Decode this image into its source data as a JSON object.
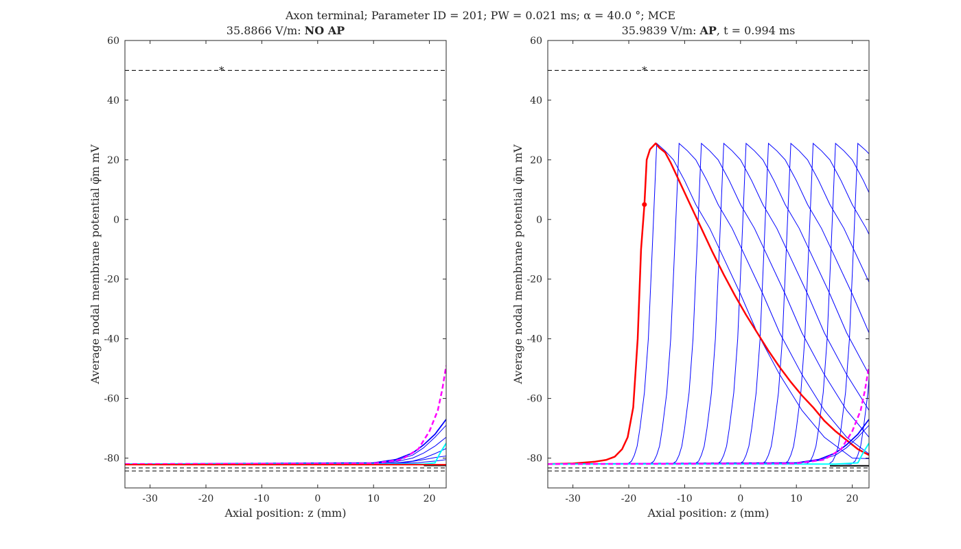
{
  "figure": {
    "suptitle": "Axon terminal; Parameter ID = 201; PW = 0.021 ms; α = 40.0 °; MCE"
  },
  "chart_data": [
    {
      "type": "line",
      "title_prefix": "35.8866 V/m: ",
      "title_bold": "NO AP",
      "title_suffix": "",
      "xlabel": "Axial position: z (mm)",
      "ylabel": "Average nodal membrane potential φ̄m mV",
      "xlim": [
        -34.5,
        23
      ],
      "ylim": [
        -90,
        60
      ],
      "xticks": [
        -30,
        -20,
        -10,
        0,
        10,
        20
      ],
      "yticks": [
        -80,
        -60,
        -40,
        -20,
        0,
        20,
        40,
        60
      ],
      "threshold_line": {
        "y": 50,
        "color": "#000000",
        "style": "dashed"
      },
      "threshold_marker": {
        "x": -17.2,
        "y": 50,
        "symbol": "*"
      },
      "reference_lines": [
        {
          "y": -83.3,
          "color": "#000000",
          "style": "dashed"
        },
        {
          "y": -84.3,
          "color": "#000000",
          "style": "dashed"
        }
      ],
      "series": [
        {
          "color": "#0000ff",
          "width": 1,
          "points": [
            [
              -34.5,
              -82
            ],
            [
              10,
              -81.9
            ],
            [
              14,
              -81.6
            ],
            [
              17,
              -81
            ],
            [
              19,
              -80
            ],
            [
              21,
              -78.5
            ],
            [
              23,
              -76.8
            ]
          ]
        },
        {
          "color": "#0000ff",
          "width": 1,
          "points": [
            [
              -34.5,
              -82
            ],
            [
              10,
              -81.8
            ],
            [
              14,
              -81.2
            ],
            [
              17,
              -80
            ],
            [
              19,
              -78.3
            ],
            [
              21,
              -76
            ],
            [
              23,
              -73
            ]
          ]
        },
        {
          "color": "#0000ff",
          "width": 1,
          "points": [
            [
              -34.5,
              -82
            ],
            [
              10,
              -81.7
            ],
            [
              14,
              -80.8
            ],
            [
              17,
              -79
            ],
            [
              19,
              -76.5
            ],
            [
              21,
              -73
            ],
            [
              23,
              -69
            ]
          ]
        },
        {
          "color": "#0000ff",
          "width": 1.8,
          "points": [
            [
              -34.5,
              -82
            ],
            [
              10,
              -81.6
            ],
            [
              14,
              -80.5
            ],
            [
              17,
              -78.3
            ],
            [
              19,
              -75.5
            ],
            [
              21,
              -72
            ],
            [
              23,
              -67
            ]
          ]
        },
        {
          "color": "#0000ff",
          "width": 1,
          "points": [
            [
              -34.5,
              -82
            ],
            [
              12,
              -81.9
            ],
            [
              16,
              -81.4
            ],
            [
              19,
              -80.5
            ],
            [
              21,
              -79.8
            ],
            [
              23,
              -79.3
            ]
          ]
        },
        {
          "color": "#0000ff",
          "width": 1,
          "points": [
            [
              -34.5,
              -82
            ],
            [
              14,
              -81.9
            ],
            [
              18,
              -81.5
            ],
            [
              21,
              -81
            ],
            [
              23,
              -80.5
            ]
          ]
        },
        {
          "color": "#00ffff",
          "width": 2,
          "points": [
            [
              -34.5,
              -82
            ],
            [
              19,
              -82
            ],
            [
              21,
              -81.6
            ],
            [
              22,
              -78
            ],
            [
              23,
              -75
            ]
          ]
        },
        {
          "color": "#ff00ff",
          "width": 2.5,
          "dash": true,
          "points": [
            [
              -34.5,
              -82
            ],
            [
              10,
              -81.8
            ],
            [
              15,
              -80.5
            ],
            [
              18,
              -77
            ],
            [
              20,
              -71
            ],
            [
              21.5,
              -64
            ],
            [
              22.3,
              -57
            ],
            [
              23,
              -49
            ]
          ]
        },
        {
          "color": "#ff0000",
          "width": 2,
          "points": [
            [
              -34.5,
              -82.2
            ],
            [
              23,
              -82.2
            ]
          ]
        },
        {
          "color": "#000000",
          "width": 1.2,
          "points": [
            [
              19,
              -82.6
            ],
            [
              23,
              -82.6
            ]
          ]
        }
      ],
      "markers": []
    },
    {
      "type": "line",
      "title_prefix": "35.9839 V/m: ",
      "title_bold": "AP",
      "title_suffix": ", t = 0.994 ms",
      "xlabel": "Axial position: z (mm)",
      "ylabel": "Average nodal membrane potential φ̄m mV",
      "xlim": [
        -34.5,
        23
      ],
      "ylim": [
        -90,
        60
      ],
      "xticks": [
        -30,
        -20,
        -10,
        0,
        10,
        20
      ],
      "yticks": [
        -80,
        -60,
        -40,
        -20,
        0,
        20,
        40,
        60
      ],
      "threshold_line": {
        "y": 50,
        "color": "#000000",
        "style": "dashed"
      },
      "threshold_marker": {
        "x": -17.2,
        "y": 50,
        "symbol": "*"
      },
      "reference_lines": [
        {
          "y": -83.3,
          "color": "#000000",
          "style": "dashed"
        },
        {
          "y": -84.3,
          "color": "#000000",
          "style": "dashed"
        }
      ],
      "wave_family": {
        "color": "#0000ff",
        "width": 1,
        "peak_positions": [
          -15,
          -11,
          -7,
          -3,
          1,
          5,
          9,
          13,
          17,
          21,
          25
        ],
        "peak_value": 25.5,
        "rest_value": -82
      },
      "series": [
        {
          "color": "#ff0000",
          "width": 2.5,
          "points": [
            [
              -34.5,
              -82
            ],
            [
              -30,
              -81.8
            ],
            [
              -26,
              -81.2
            ],
            [
              -24,
              -80.6
            ],
            [
              -22.5,
              -79.5
            ],
            [
              -21.2,
              -77
            ],
            [
              -20.2,
              -73
            ],
            [
              -19.2,
              -63
            ],
            [
              -18.4,
              -40
            ],
            [
              -17.8,
              -10
            ],
            [
              -17.2,
              5
            ],
            [
              -16.8,
              20
            ],
            [
              -16.2,
              23.5
            ],
            [
              -15.2,
              25.5
            ],
            [
              -14.5,
              24
            ],
            [
              -13.5,
              22.5
            ],
            [
              -12.5,
              19
            ],
            [
              -11,
              13
            ],
            [
              -9,
              5
            ],
            [
              -7,
              -3
            ],
            [
              -5,
              -11
            ],
            [
              -3,
              -18.5
            ],
            [
              -1,
              -25.5
            ],
            [
              1,
              -32
            ],
            [
              3,
              -38
            ],
            [
              5,
              -44
            ],
            [
              7,
              -49.5
            ],
            [
              9,
              -54.5
            ],
            [
              11,
              -59
            ],
            [
              13,
              -63
            ],
            [
              15,
              -67.5
            ],
            [
              17,
              -71
            ],
            [
              19,
              -74
            ],
            [
              21,
              -77
            ],
            [
              23,
              -79
            ]
          ]
        },
        {
          "color": "#0000ff",
          "width": 1.8,
          "points": [
            [
              -34.5,
              -82
            ],
            [
              10,
              -81.6
            ],
            [
              14,
              -80.5
            ],
            [
              17,
              -78.3
            ],
            [
              19,
              -75.5
            ],
            [
              21,
              -72
            ],
            [
              23,
              -67
            ]
          ]
        },
        {
          "color": "#0000ff",
          "width": 1,
          "points": [
            [
              -34.5,
              -82
            ],
            [
              10,
              -81.7
            ],
            [
              14,
              -80.8
            ],
            [
              17,
              -79
            ],
            [
              19,
              -76.5
            ],
            [
              21,
              -73
            ],
            [
              23,
              -69
            ]
          ]
        },
        {
          "color": "#00ffff",
          "width": 2,
          "points": [
            [
              -34.5,
              -82
            ],
            [
              17,
              -82
            ],
            [
              19,
              -81.8
            ],
            [
              21,
              -81.6
            ],
            [
              22,
              -78
            ],
            [
              23,
              -75
            ]
          ]
        },
        {
          "color": "#ff00ff",
          "width": 2.5,
          "dash": true,
          "points": [
            [
              -34.5,
              -82
            ],
            [
              10,
              -81.8
            ],
            [
              15,
              -80.5
            ],
            [
              18,
              -77
            ],
            [
              20,
              -71
            ],
            [
              21.5,
              -64
            ],
            [
              22.3,
              -57
            ],
            [
              23,
              -49
            ]
          ]
        },
        {
          "color": "#000000",
          "width": 2,
          "points": [
            [
              16,
              -82.6
            ],
            [
              23,
              -82.6
            ]
          ]
        }
      ],
      "markers": [
        {
          "x": -17.2,
          "y": 5,
          "color": "#ff0000",
          "symbol": "dot"
        }
      ]
    }
  ]
}
